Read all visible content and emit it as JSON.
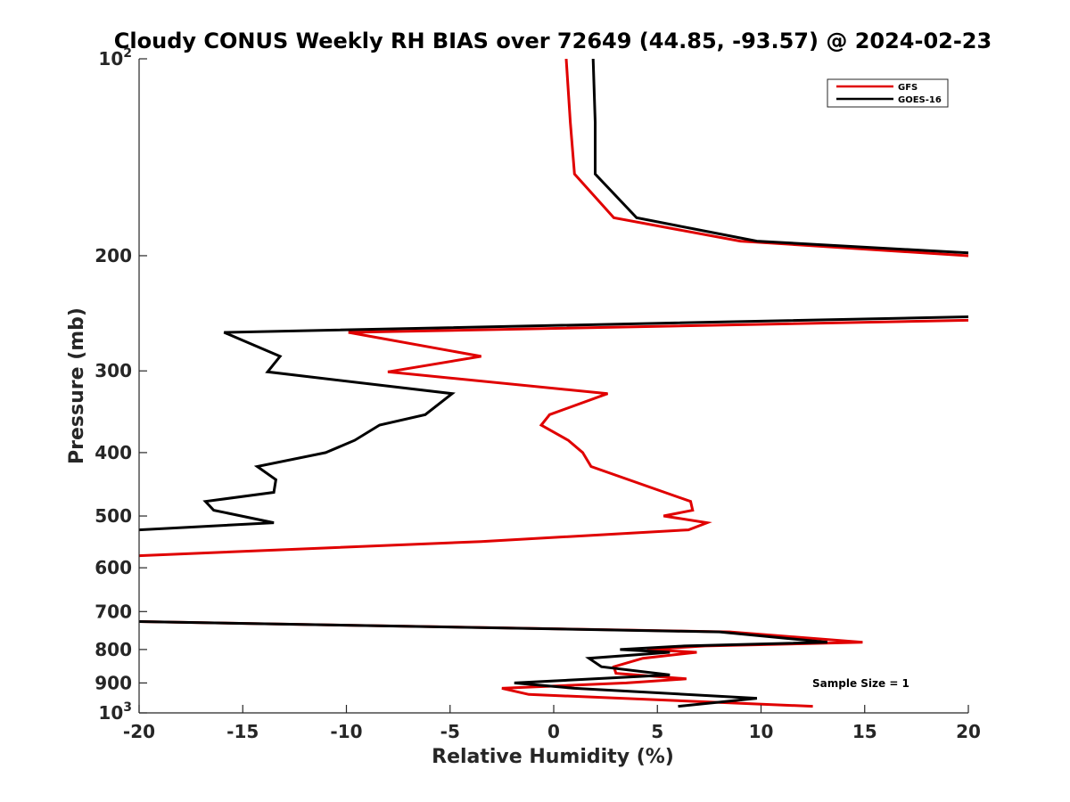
{
  "chart_data": {
    "type": "line",
    "title": "Cloudy CONUS Weekly RH BIAS over 72649 (44.85, -93.57) @ 2024-02-23",
    "xlabel": "Relative Humidity (%)",
    "ylabel": "Pressure (mb)",
    "xlim": [
      -20,
      20
    ],
    "ylim": [
      100,
      1000
    ],
    "y_scale": "log",
    "y_reversed": true,
    "grid": false,
    "legend_placement": "top-right",
    "x_ticks": [
      -20,
      -15,
      -10,
      -5,
      0,
      5,
      10,
      15,
      20
    ],
    "x_tick_labels": [
      "-20",
      "-15",
      "-10",
      "-5",
      "0",
      "5",
      "10",
      "15",
      "20"
    ],
    "y_ticks": [
      100,
      200,
      300,
      400,
      500,
      600,
      700,
      800,
      900,
      1000
    ],
    "y_tick_labels": [
      {
        "base": "10",
        "exp": "2"
      },
      {
        "base": "200"
      },
      {
        "base": "300"
      },
      {
        "base": "400"
      },
      {
        "base": "500"
      },
      {
        "base": "600"
      },
      {
        "base": "700"
      },
      {
        "base": "800"
      },
      {
        "base": "900"
      },
      {
        "base": "10",
        "exp": "3"
      }
    ],
    "annotation": "Sample Size = 1",
    "series": [
      {
        "name": "GFS",
        "color": "#e00000",
        "segments": [
          [
            [
              0.6,
              100
            ],
            [
              0.8,
              125
            ],
            [
              1.0,
              150
            ],
            [
              2.9,
              175
            ],
            [
              9.0,
              190
            ],
            [
              20,
              200
            ]
          ],
          [
            [
              20,
              251
            ],
            [
              -9.9,
              262
            ],
            [
              -3.5,
              285
            ],
            [
              -8.0,
              301
            ],
            [
              2.6,
              325
            ],
            [
              -0.2,
              350
            ],
            [
              -0.6,
              363
            ],
            [
              0.7,
              383
            ],
            [
              1.4,
              400
            ],
            [
              1.8,
              420
            ],
            [
              6.6,
              475
            ],
            [
              6.7,
              490
            ],
            [
              5.3,
              500
            ],
            [
              7.4,
              512
            ],
            [
              6.5,
              525
            ],
            [
              -3.5,
              547
            ],
            [
              -20,
              575
            ]
          ],
          [
            [
              -20,
              725
            ],
            [
              8.5,
              752
            ],
            [
              14.9,
              780
            ],
            [
              7.3,
              790
            ],
            [
              4.5,
              800
            ],
            [
              6.9,
              808
            ],
            [
              4.3,
              825
            ],
            [
              2.9,
              850
            ],
            [
              3.0,
              870
            ],
            [
              6.4,
              887
            ],
            [
              3.5,
              900
            ],
            [
              -2.5,
              917
            ],
            [
              -1.2,
              937
            ],
            [
              12.5,
              977
            ]
          ]
        ]
      },
      {
        "name": "GOES-16",
        "color": "#000000",
        "segments": [
          [
            [
              1.9,
              100
            ],
            [
              2.0,
              125
            ],
            [
              2.0,
              150
            ],
            [
              4.0,
              175
            ],
            [
              9.8,
              190
            ],
            [
              20,
              198
            ]
          ],
          [
            [
              20,
              248
            ],
            [
              -15.9,
              262
            ],
            [
              -13.2,
              285
            ],
            [
              -13.8,
              301
            ],
            [
              -4.9,
              325
            ],
            [
              -6.2,
              350
            ],
            [
              -8.4,
              363
            ],
            [
              -9.6,
              383
            ],
            [
              -11.0,
              400
            ],
            [
              -14.3,
              420
            ],
            [
              -13.4,
              440
            ],
            [
              -13.5,
              460
            ],
            [
              -16.8,
              475
            ],
            [
              -16.4,
              490
            ],
            [
              -13.5,
              512
            ],
            [
              -20,
              525
            ]
          ],
          [
            [
              -20,
              725
            ],
            [
              8.0,
              752
            ],
            [
              13.2,
              780
            ],
            [
              6.3,
              790
            ],
            [
              3.2,
              800
            ],
            [
              5.6,
              808
            ],
            [
              1.7,
              825
            ],
            [
              2.3,
              850
            ],
            [
              5.6,
              875
            ],
            [
              -1.9,
              900
            ],
            [
              1.0,
              917
            ],
            [
              9.8,
              950
            ],
            [
              6.0,
              977
            ]
          ]
        ]
      }
    ]
  }
}
